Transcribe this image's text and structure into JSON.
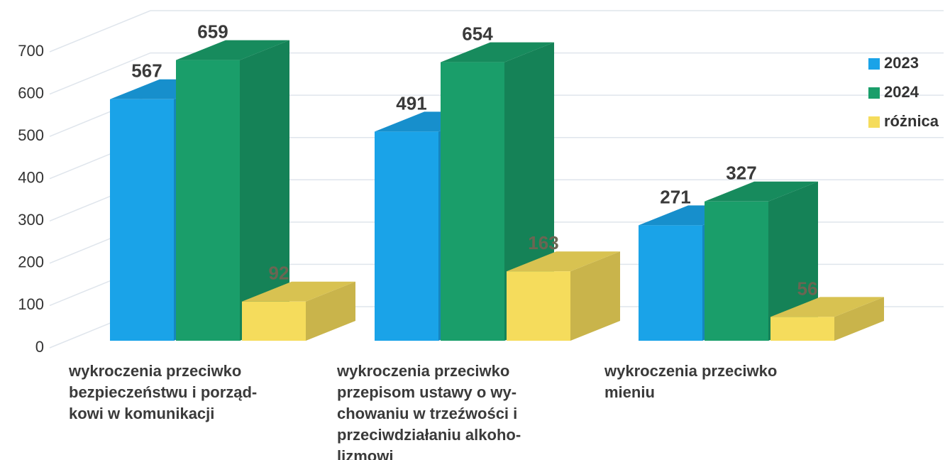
{
  "chart_data": {
    "type": "bar3d",
    "categories": [
      "wykroczenia przeciwko\nbezpieczeństwu i porząd-\nkowi w komunikacji",
      "wykroczenia przeciwko\nprzepisom ustawy o wy-\nchowaniu w trzeźwości i\nprzeciwdziałaniu alkoho-\nlizmowi",
      "wykroczenia przeciwko\nmieniu"
    ],
    "series": [
      {
        "name": "2023",
        "color": "#1aa3e8",
        "values": [
          567,
          491,
          271
        ]
      },
      {
        "name": "2024",
        "color": "#1a9e6a",
        "values": [
          659,
          654,
          327
        ]
      },
      {
        "name": "różnica",
        "color": "#f5dc5c",
        "values": [
          92,
          163,
          56
        ]
      }
    ],
    "ylim": [
      0,
      700
    ],
    "yticks": [
      0,
      100,
      200,
      300,
      400,
      500,
      600,
      700
    ],
    "grid": true,
    "legend": "right"
  }
}
